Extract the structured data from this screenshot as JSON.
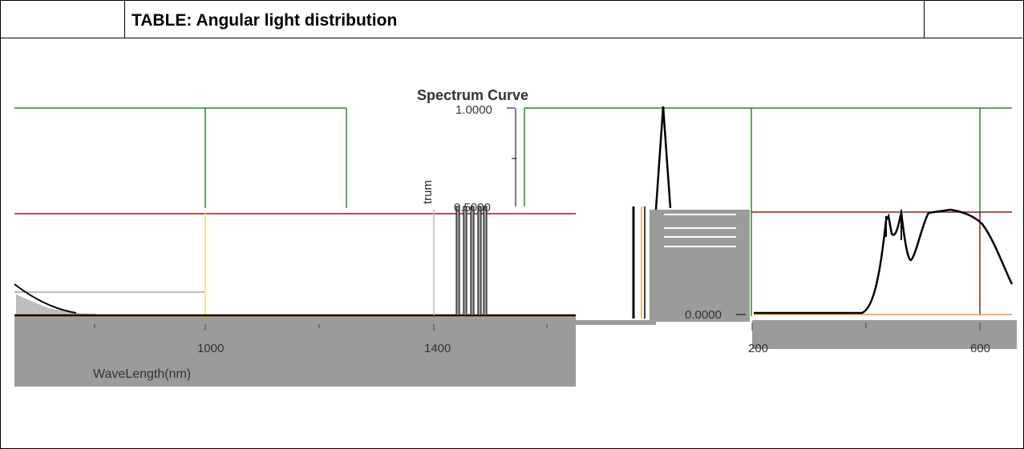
{
  "table_title": "TABLE: Angular light distribution",
  "plot": {
    "chart_title": "Spectrum Curve",
    "y_axis_fragment": "trum",
    "x_axis_label": "WaveLength(nm)",
    "y_ticks": [
      "1.0000",
      "0.5000",
      "0.0000"
    ],
    "x_ticks_left": [
      "1000",
      "1400"
    ],
    "x_ticks_right": [
      "200",
      "600"
    ],
    "colors": {
      "green": "#2a8a2a",
      "maroon": "#8b1e1e",
      "gray": "#9b9b9b",
      "orange": "#e0a23a"
    }
  }
}
